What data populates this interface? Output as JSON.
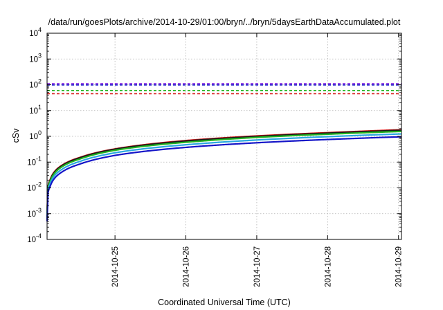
{
  "chart_data": {
    "type": "line",
    "title": "/data/run/goesPlots/archive/2014-10-29/01:00/bryn/../bryn/5daysEarthDataAccumulated.plot",
    "xlabel": "Coordinated Universal Time (UTC)",
    "ylabel": "cSv",
    "y_scale": "log",
    "ylim": [
      0.0001,
      10000
    ],
    "xlim": [
      "2014-10-24 01:00",
      "2014-10-29 01:00"
    ],
    "x_ticks": [
      "2014-10-25",
      "2014-10-26",
      "2014-10-27",
      "2014-10-28",
      "2014-10-29"
    ],
    "y_ticks": [
      {
        "base": "10",
        "exp": "-4",
        "value": 0.0001
      },
      {
        "base": "10",
        "exp": "-3",
        "value": 0.001
      },
      {
        "base": "10",
        "exp": "-2",
        "value": 0.01
      },
      {
        "base": "10",
        "exp": "-1",
        "value": 0.1
      },
      {
        "base": "10",
        "exp": "0",
        "value": 1
      },
      {
        "base": "10",
        "exp": "1",
        "value": 10
      },
      {
        "base": "10",
        "exp": "2",
        "value": 100
      },
      {
        "base": "10",
        "exp": "3",
        "value": 1000
      },
      {
        "base": "10",
        "exp": "4",
        "value": 10000
      }
    ],
    "grid": true,
    "threshold_series": [
      {
        "color": "#8a2be2",
        "value": 110
      },
      {
        "color": "#1515c8",
        "value": 98
      },
      {
        "color": "#22b422",
        "value": 60
      },
      {
        "color": "#d81818",
        "value": 45
      }
    ],
    "series": [
      {
        "color": "#d81818",
        "x": [
          "2014-10-24 01:00",
          "2014-10-24 02:00",
          "2014-10-24 06:00",
          "2014-10-24 12:00",
          "2014-10-25 01:00",
          "2014-10-26 01:00",
          "2014-10-27 01:00",
          "2014-10-28 01:00",
          "2014-10-29 01:00"
        ],
        "y": [
          0.0008,
          0.02,
          0.075,
          0.15,
          0.34,
          0.7,
          1.05,
          1.4,
          1.8
        ]
      },
      {
        "color": "#1a1a1a",
        "x": [
          "2014-10-24 01:00",
          "2014-10-24 02:00",
          "2014-10-24 06:00",
          "2014-10-24 12:00",
          "2014-10-25 01:00",
          "2014-10-26 01:00",
          "2014-10-27 01:00",
          "2014-10-28 01:00",
          "2014-10-29 01:00"
        ],
        "y": [
          0.00078,
          0.019,
          0.072,
          0.145,
          0.33,
          0.67,
          1.0,
          1.34,
          1.72
        ]
      },
      {
        "color": "#22b422",
        "x": [
          "2014-10-24 01:00",
          "2014-10-24 02:00",
          "2014-10-24 06:00",
          "2014-10-24 12:00",
          "2014-10-25 01:00",
          "2014-10-26 01:00",
          "2014-10-27 01:00",
          "2014-10-28 01:00",
          "2014-10-29 01:00"
        ],
        "y": [
          0.0007,
          0.017,
          0.065,
          0.13,
          0.3,
          0.6,
          0.92,
          1.22,
          1.55
        ]
      },
      {
        "color": "#2aa8e0",
        "x": [
          "2014-10-24 01:00",
          "2014-10-24 02:00",
          "2014-10-24 06:00",
          "2014-10-24 12:00",
          "2014-10-25 01:00",
          "2014-10-26 01:00",
          "2014-10-27 01:00",
          "2014-10-28 01:00",
          "2014-10-29 01:00"
        ],
        "y": [
          0.0006,
          0.014,
          0.052,
          0.105,
          0.24,
          0.48,
          0.73,
          0.98,
          1.24
        ]
      },
      {
        "color": "#1515c8",
        "x": [
          "2014-10-24 01:00",
          "2014-10-24 02:00",
          "2014-10-24 06:00",
          "2014-10-24 12:00",
          "2014-10-25 01:00",
          "2014-10-26 01:00",
          "2014-10-27 01:00",
          "2014-10-28 01:00",
          "2014-10-29 01:00"
        ],
        "y": [
          0.0005,
          0.011,
          0.041,
          0.083,
          0.19,
          0.38,
          0.57,
          0.76,
          0.96
        ]
      }
    ]
  }
}
